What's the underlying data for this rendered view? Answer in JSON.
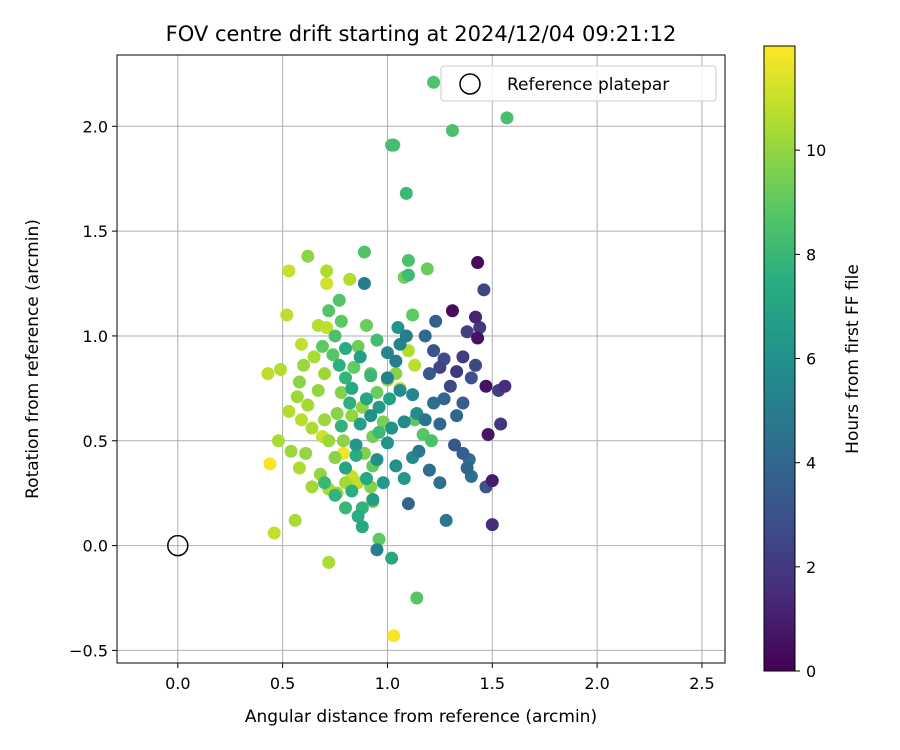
{
  "chart_data": {
    "type": "scatter",
    "title": "FOV centre drift starting at 2024/12/04 09:21:12",
    "xlabel": "Angular distance from reference (arcmin)",
    "ylabel": "Rotation from reference (arcmin)",
    "xlim": [
      -0.29,
      2.61
    ],
    "ylim": [
      -0.56,
      2.34
    ],
    "x_ticks": [
      0.0,
      0.5,
      1.0,
      1.5,
      2.0,
      2.5
    ],
    "y_ticks": [
      -0.5,
      0.0,
      0.5,
      1.0,
      1.5,
      2.0
    ],
    "x_tick_labels": [
      "0.0",
      "0.5",
      "1.0",
      "1.5",
      "2.0",
      "2.5"
    ],
    "y_tick_labels": [
      "−0.5",
      "0.0",
      "0.5",
      "1.0",
      "1.5",
      "2.0"
    ],
    "grid": true,
    "legend": {
      "placement": "top-right",
      "entries": [
        "Reference platepar"
      ]
    },
    "reference_point": {
      "x": 0.0,
      "y": 0.0
    },
    "colorbar": {
      "label": "Hours from first FF file",
      "colormap": "viridis",
      "min": 0,
      "max": 12,
      "ticks": [
        0,
        2,
        4,
        6,
        8,
        10
      ],
      "tick_labels": [
        "0",
        "2",
        "4",
        "6",
        "8",
        "10"
      ]
    },
    "points": [
      {
        "x": 1.43,
        "y": 1.35,
        "c": 0.3
      },
      {
        "x": 1.31,
        "y": 1.12,
        "c": 0.4
      },
      {
        "x": 1.42,
        "y": 1.09,
        "c": 1.2
      },
      {
        "x": 1.43,
        "y": 0.99,
        "c": 0.6
      },
      {
        "x": 1.47,
        "y": 0.76,
        "c": 0.6
      },
      {
        "x": 1.53,
        "y": 0.74,
        "c": 2.2
      },
      {
        "x": 1.56,
        "y": 0.76,
        "c": 1.5
      },
      {
        "x": 1.48,
        "y": 0.53,
        "c": 0.7
      },
      {
        "x": 1.5,
        "y": 0.31,
        "c": 0.9
      },
      {
        "x": 1.5,
        "y": 0.1,
        "c": 1.5
      },
      {
        "x": 1.54,
        "y": 0.58,
        "c": 1.8
      },
      {
        "x": 1.47,
        "y": 0.28,
        "c": 3.0
      },
      {
        "x": 1.46,
        "y": 1.22,
        "c": 2.5
      },
      {
        "x": 1.44,
        "y": 1.04,
        "c": 2.0
      },
      {
        "x": 1.38,
        "y": 1.02,
        "c": 2.3
      },
      {
        "x": 1.36,
        "y": 0.9,
        "c": 2.1
      },
      {
        "x": 1.33,
        "y": 0.83,
        "c": 2.0
      },
      {
        "x": 1.3,
        "y": 0.76,
        "c": 2.6
      },
      {
        "x": 1.27,
        "y": 0.89,
        "c": 2.8
      },
      {
        "x": 1.25,
        "y": 0.85,
        "c": 2.4
      },
      {
        "x": 1.22,
        "y": 0.93,
        "c": 3.1
      },
      {
        "x": 1.2,
        "y": 0.82,
        "c": 3.3
      },
      {
        "x": 1.36,
        "y": 0.68,
        "c": 3.5
      },
      {
        "x": 1.33,
        "y": 0.62,
        "c": 4.0
      },
      {
        "x": 1.32,
        "y": 0.48,
        "c": 3.2
      },
      {
        "x": 1.36,
        "y": 0.44,
        "c": 3.6
      },
      {
        "x": 1.39,
        "y": 0.41,
        "c": 4.2
      },
      {
        "x": 1.38,
        "y": 0.37,
        "c": 4.0
      },
      {
        "x": 1.4,
        "y": 0.33,
        "c": 4.3
      },
      {
        "x": 1.42,
        "y": 0.86,
        "c": 2.6
      },
      {
        "x": 1.4,
        "y": 0.8,
        "c": 2.9
      },
      {
        "x": 1.23,
        "y": 1.07,
        "c": 3.7
      },
      {
        "x": 1.18,
        "y": 1.0,
        "c": 4.1
      },
      {
        "x": 1.27,
        "y": 0.7,
        "c": 3.9
      },
      {
        "x": 1.22,
        "y": 0.68,
        "c": 4.4
      },
      {
        "x": 1.18,
        "y": 0.6,
        "c": 4.6
      },
      {
        "x": 1.25,
        "y": 0.58,
        "c": 4.1
      },
      {
        "x": 1.15,
        "y": 0.45,
        "c": 4.8
      },
      {
        "x": 1.2,
        "y": 0.36,
        "c": 4.2
      },
      {
        "x": 1.25,
        "y": 0.3,
        "c": 4.5
      },
      {
        "x": 1.28,
        "y": 0.12,
        "c": 4.8
      },
      {
        "x": 1.1,
        "y": 0.2,
        "c": 4.0
      },
      {
        "x": 1.09,
        "y": 1.0,
        "c": 5.0
      },
      {
        "x": 1.06,
        "y": 0.96,
        "c": 5.3
      },
      {
        "x": 1.04,
        "y": 0.88,
        "c": 5.0
      },
      {
        "x": 1.0,
        "y": 0.92,
        "c": 5.5
      },
      {
        "x": 1.0,
        "y": 0.8,
        "c": 5.2
      },
      {
        "x": 1.06,
        "y": 0.74,
        "c": 5.8
      },
      {
        "x": 1.12,
        "y": 0.72,
        "c": 5.5
      },
      {
        "x": 1.14,
        "y": 0.63,
        "c": 5.9
      },
      {
        "x": 1.08,
        "y": 0.59,
        "c": 5.7
      },
      {
        "x": 1.02,
        "y": 0.56,
        "c": 6.0
      },
      {
        "x": 1.0,
        "y": 0.49,
        "c": 6.2
      },
      {
        "x": 0.95,
        "y": 0.41,
        "c": 5.9
      },
      {
        "x": 1.04,
        "y": 0.38,
        "c": 6.1
      },
      {
        "x": 1.12,
        "y": 0.42,
        "c": 5.6
      },
      {
        "x": 1.08,
        "y": 0.32,
        "c": 6.3
      },
      {
        "x": 0.98,
        "y": 0.3,
        "c": 6.4
      },
      {
        "x": 0.93,
        "y": 0.22,
        "c": 6.6
      },
      {
        "x": 0.95,
        "y": -0.02,
        "c": 5.2
      },
      {
        "x": 1.02,
        "y": -0.06,
        "c": 7.2
      },
      {
        "x": 0.89,
        "y": 1.25,
        "c": 5.0
      },
      {
        "x": 1.05,
        "y": 1.04,
        "c": 6.2
      },
      {
        "x": 1.01,
        "y": 0.7,
        "c": 6.9
      },
      {
        "x": 0.96,
        "y": 0.66,
        "c": 6.5
      },
      {
        "x": 0.92,
        "y": 0.62,
        "c": 6.0
      },
      {
        "x": 0.87,
        "y": 0.58,
        "c": 6.8
      },
      {
        "x": 0.85,
        "y": 0.48,
        "c": 6.3
      },
      {
        "x": 0.9,
        "y": 0.7,
        "c": 7.0
      },
      {
        "x": 0.83,
        "y": 0.75,
        "c": 7.2
      },
      {
        "x": 0.87,
        "y": 0.9,
        "c": 6.8
      },
      {
        "x": 0.8,
        "y": 0.94,
        "c": 7.4
      },
      {
        "x": 0.77,
        "y": 0.86,
        "c": 7.6
      },
      {
        "x": 0.8,
        "y": 0.8,
        "c": 7.9
      },
      {
        "x": 0.82,
        "y": 0.68,
        "c": 7.6
      },
      {
        "x": 0.78,
        "y": 0.57,
        "c": 7.8
      },
      {
        "x": 0.85,
        "y": 0.43,
        "c": 7.4
      },
      {
        "x": 0.8,
        "y": 0.37,
        "c": 7.0
      },
      {
        "x": 0.9,
        "y": 0.32,
        "c": 7.2
      },
      {
        "x": 0.83,
        "y": 0.26,
        "c": 7.5
      },
      {
        "x": 0.88,
        "y": 0.18,
        "c": 7.8
      },
      {
        "x": 0.86,
        "y": 0.14,
        "c": 7.4
      },
      {
        "x": 0.8,
        "y": 0.18,
        "c": 8.0
      },
      {
        "x": 0.88,
        "y": 0.09,
        "c": 7.2
      },
      {
        "x": 0.75,
        "y": 0.24,
        "c": 7.8
      },
      {
        "x": 0.7,
        "y": 0.3,
        "c": 8.0
      },
      {
        "x": 0.96,
        "y": 0.54,
        "c": 8.1
      },
      {
        "x": 0.92,
        "y": 0.81,
        "c": 8.0
      },
      {
        "x": 0.95,
        "y": 0.98,
        "c": 8.3
      },
      {
        "x": 1.1,
        "y": 1.36,
        "c": 8.5
      },
      {
        "x": 1.1,
        "y": 1.29,
        "c": 8.2
      },
      {
        "x": 1.09,
        "y": 1.68,
        "c": 8.1
      },
      {
        "x": 1.02,
        "y": 1.91,
        "c": 8.3
      },
      {
        "x": 1.03,
        "y": 1.91,
        "c": 8.4
      },
      {
        "x": 1.31,
        "y": 1.98,
        "c": 8.5
      },
      {
        "x": 1.57,
        "y": 2.04,
        "c": 8.4
      },
      {
        "x": 1.22,
        "y": 2.21,
        "c": 8.6
      },
      {
        "x": 1.14,
        "y": -0.25,
        "c": 8.8
      },
      {
        "x": 0.89,
        "y": 1.4,
        "c": 8.6
      },
      {
        "x": 0.77,
        "y": 1.17,
        "c": 8.7
      },
      {
        "x": 0.72,
        "y": 1.12,
        "c": 8.8
      },
      {
        "x": 0.78,
        "y": 1.07,
        "c": 8.9
      },
      {
        "x": 0.75,
        "y": 1.0,
        "c": 8.5
      },
      {
        "x": 0.69,
        "y": 0.95,
        "c": 9.0
      },
      {
        "x": 0.74,
        "y": 0.91,
        "c": 8.8
      },
      {
        "x": 0.84,
        "y": 0.85,
        "c": 9.1
      },
      {
        "x": 0.86,
        "y": 0.95,
        "c": 9.3
      },
      {
        "x": 0.9,
        "y": 1.05,
        "c": 9.2
      },
      {
        "x": 0.92,
        "y": 0.82,
        "c": 9.0
      },
      {
        "x": 0.95,
        "y": 0.73,
        "c": 9.2
      },
      {
        "x": 0.98,
        "y": 0.59,
        "c": 9.5
      },
      {
        "x": 0.93,
        "y": 0.52,
        "c": 9.4
      },
      {
        "x": 0.89,
        "y": 0.44,
        "c": 9.6
      },
      {
        "x": 0.93,
        "y": 0.38,
        "c": 9.1
      },
      {
        "x": 0.92,
        "y": 0.28,
        "c": 9.7
      },
      {
        "x": 0.93,
        "y": 0.21,
        "c": 9.3
      },
      {
        "x": 0.96,
        "y": 0.03,
        "c": 9.0
      },
      {
        "x": 1.13,
        "y": 0.6,
        "c": 9.0
      },
      {
        "x": 1.17,
        "y": 0.53,
        "c": 8.8
      },
      {
        "x": 1.21,
        "y": 0.5,
        "c": 8.5
      },
      {
        "x": 1.12,
        "y": 1.1,
        "c": 9.0
      },
      {
        "x": 1.19,
        "y": 1.32,
        "c": 9.2
      },
      {
        "x": 1.08,
        "y": 1.28,
        "c": 9.4
      },
      {
        "x": 1.04,
        "y": 0.82,
        "c": 9.8
      },
      {
        "x": 1.0,
        "y": 0.79,
        "c": 9.8
      },
      {
        "x": 0.88,
        "y": 0.66,
        "c": 9.9
      },
      {
        "x": 0.83,
        "y": 0.62,
        "c": 10.0
      },
      {
        "x": 0.78,
        "y": 0.73,
        "c": 9.7
      },
      {
        "x": 0.76,
        "y": 0.63,
        "c": 9.8
      },
      {
        "x": 0.7,
        "y": 0.6,
        "c": 10.1
      },
      {
        "x": 0.72,
        "y": 0.5,
        "c": 10.2
      },
      {
        "x": 0.79,
        "y": 0.5,
        "c": 9.9
      },
      {
        "x": 0.75,
        "y": 0.42,
        "c": 9.8
      },
      {
        "x": 0.8,
        "y": 0.3,
        "c": 10.3
      },
      {
        "x": 0.76,
        "y": 0.25,
        "c": 10.1
      },
      {
        "x": 0.72,
        "y": 0.27,
        "c": 10.4
      },
      {
        "x": 0.68,
        "y": 0.34,
        "c": 10.0
      },
      {
        "x": 0.64,
        "y": 0.28,
        "c": 10.3
      },
      {
        "x": 0.61,
        "y": 0.44,
        "c": 10.0
      },
      {
        "x": 0.58,
        "y": 0.37,
        "c": 10.5
      },
      {
        "x": 0.54,
        "y": 0.45,
        "c": 10.2
      },
      {
        "x": 0.48,
        "y": 0.5,
        "c": 10.4
      },
      {
        "x": 0.53,
        "y": 0.64,
        "c": 10.6
      },
      {
        "x": 0.59,
        "y": 0.6,
        "c": 10.7
      },
      {
        "x": 0.62,
        "y": 0.67,
        "c": 10.3
      },
      {
        "x": 0.57,
        "y": 0.71,
        "c": 10.2
      },
      {
        "x": 0.58,
        "y": 0.78,
        "c": 9.8
      },
      {
        "x": 0.6,
        "y": 0.86,
        "c": 10.1
      },
      {
        "x": 0.65,
        "y": 0.9,
        "c": 10.4
      },
      {
        "x": 0.7,
        "y": 0.82,
        "c": 10.2
      },
      {
        "x": 0.67,
        "y": 0.74,
        "c": 10.0
      },
      {
        "x": 0.64,
        "y": 0.56,
        "c": 10.5
      },
      {
        "x": 0.43,
        "y": 0.82,
        "c": 10.8
      },
      {
        "x": 0.49,
        "y": 0.84,
        "c": 10.6
      },
      {
        "x": 0.59,
        "y": 0.96,
        "c": 10.9
      },
      {
        "x": 0.67,
        "y": 1.05,
        "c": 10.7
      },
      {
        "x": 0.71,
        "y": 1.04,
        "c": 10.9
      },
      {
        "x": 0.52,
        "y": 1.1,
        "c": 10.8
      },
      {
        "x": 0.53,
        "y": 1.31,
        "c": 11.0
      },
      {
        "x": 0.62,
        "y": 1.38,
        "c": 9.9
      },
      {
        "x": 0.71,
        "y": 1.31,
        "c": 10.5
      },
      {
        "x": 0.71,
        "y": 1.25,
        "c": 11.2
      },
      {
        "x": 0.82,
        "y": 1.27,
        "c": 10.6
      },
      {
        "x": 0.56,
        "y": 0.12,
        "c": 10.4
      },
      {
        "x": 0.46,
        "y": 0.06,
        "c": 10.9
      },
      {
        "x": 0.72,
        "y": -0.08,
        "c": 10.5
      },
      {
        "x": 0.44,
        "y": 0.39,
        "c": 11.9
      },
      {
        "x": 0.79,
        "y": 0.44,
        "c": 11.8
      },
      {
        "x": 1.03,
        "y": -0.43,
        "c": 11.9
      },
      {
        "x": 0.83,
        "y": 0.33,
        "c": 11.0
      },
      {
        "x": 0.86,
        "y": 0.3,
        "c": 10.8
      },
      {
        "x": 0.69,
        "y": 0.52,
        "c": 11.1
      },
      {
        "x": 1.1,
        "y": 0.93,
        "c": 10.6
      },
      {
        "x": 1.13,
        "y": 0.86,
        "c": 10.8
      },
      {
        "x": 1.06,
        "y": 0.75,
        "c": 11.0
      }
    ]
  }
}
